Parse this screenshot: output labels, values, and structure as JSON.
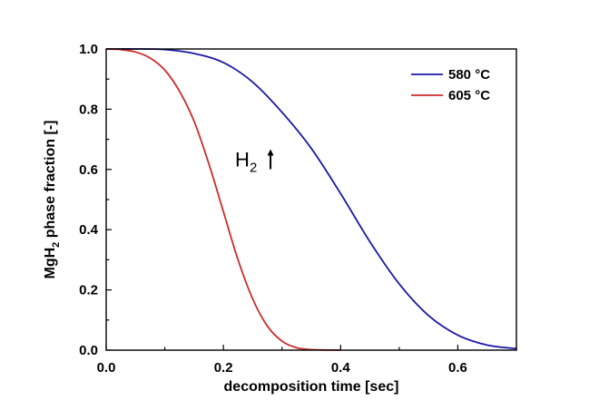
{
  "chart_data": {
    "type": "line",
    "xlabel": "decomposition time [sec]",
    "ylabel": {
      "pre": "MgH",
      "sub": "2",
      "post": " phase fraction [-]"
    },
    "xlim": [
      0.0,
      0.7
    ],
    "ylim": [
      0.0,
      1.0
    ],
    "xticks": [
      "0.0",
      "0.2",
      "0.4",
      "0.6"
    ],
    "yticks": [
      "0.0",
      "0.2",
      "0.4",
      "0.6",
      "0.8",
      "1.0"
    ],
    "legend_position": "top-right",
    "annotation": {
      "pre": "H",
      "sub": "2",
      "x": 0.22,
      "y": 0.61
    },
    "series": [
      {
        "name": "580 °C",
        "color": "#1a1aa6",
        "x": [
          0.0,
          0.05,
          0.1,
          0.15,
          0.2,
          0.25,
          0.3,
          0.35,
          0.4,
          0.45,
          0.5,
          0.55,
          0.6,
          0.65,
          0.7
        ],
        "y": [
          1.0,
          1.0,
          0.998,
          0.985,
          0.955,
          0.89,
          0.79,
          0.67,
          0.52,
          0.36,
          0.22,
          0.115,
          0.05,
          0.017,
          0.005
        ]
      },
      {
        "name": "605 °C",
        "color": "#cc2a2a",
        "x": [
          0.0,
          0.025,
          0.05,
          0.075,
          0.1,
          0.125,
          0.15,
          0.175,
          0.2,
          0.225,
          0.25,
          0.275,
          0.3,
          0.325,
          0.35,
          0.4
        ],
        "y": [
          1.0,
          0.998,
          0.99,
          0.97,
          0.93,
          0.86,
          0.76,
          0.62,
          0.46,
          0.3,
          0.17,
          0.08,
          0.03,
          0.008,
          0.002,
          0.0
        ]
      }
    ]
  }
}
